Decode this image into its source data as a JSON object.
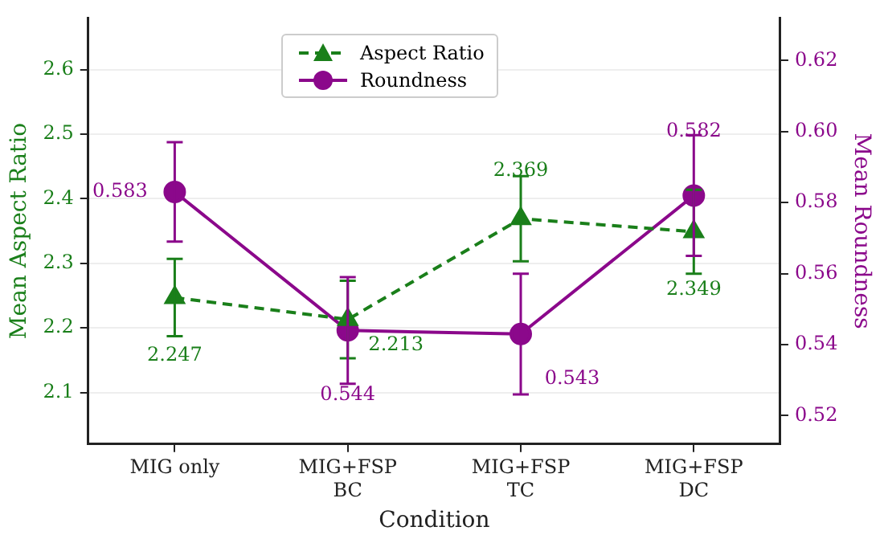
{
  "chart_data": {
    "type": "line",
    "categories": [
      "MIG only",
      "MIG+FSP\nBC",
      "MIG+FSP\nTC",
      "MIG+FSP\nDC"
    ],
    "xlabel": "Condition",
    "ylabel": "Mean Aspect Ratio",
    "y2label": "Mean Roundness",
    "series": [
      {
        "name": "Aspect Ratio",
        "color": "#1a7f1a",
        "values": [
          2.247,
          2.213,
          2.369,
          2.349
        ],
        "errors": [
          0.06,
          0.06,
          0.066,
          0.065
        ],
        "marker": "triangle",
        "line_style": "dashed"
      },
      {
        "name": "Roundness",
        "color": "#8b088b",
        "values": [
          0.583,
          0.544,
          0.543,
          0.582
        ],
        "errors": [
          0.014,
          0.015,
          0.017,
          0.017
        ],
        "axis": "y2",
        "marker": "circle",
        "line_style": "solid"
      }
    ],
    "ylim": [
      2.02,
      2.68
    ],
    "yticks": [
      2.1,
      2.2,
      2.3,
      2.4,
      2.5,
      2.6
    ],
    "y2lim": [
      0.512,
      0.632
    ],
    "y2ticks": [
      0.52,
      0.54,
      0.56,
      0.58,
      {
        "value": 0.6,
        "label": "0.60"
      },
      0.62
    ],
    "data_labels": true,
    "grid": "y",
    "legend": "top"
  }
}
